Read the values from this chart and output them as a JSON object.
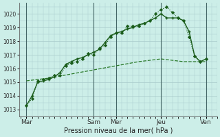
{
  "background_color": "#cceee8",
  "grid_color": "#aacccc",
  "line_color_1": "#1a5c1a",
  "line_color_2": "#1a5c1a",
  "line_color_3": "#2a7a2a",
  "title": "Pression niveau de la mer( hPa )",
  "ylabel_ticks": [
    1013,
    1014,
    1015,
    1016,
    1017,
    1018,
    1019,
    1020
  ],
  "ylim": [
    1012.5,
    1020.8
  ],
  "x_day_labels": [
    "Mar",
    "Sam",
    "Mer",
    "Jeu",
    "Ven"
  ],
  "x_day_positions": [
    0,
    9,
    12,
    18,
    24
  ],
  "xlim": [
    -1,
    25.5
  ],
  "series1_x": [
    0,
    0.75,
    1.5,
    2.25,
    3,
    3.75,
    4.5,
    5.25,
    6,
    6.75,
    7.5,
    8.25,
    9,
    9.75,
    10.5,
    11.25,
    12,
    12.75,
    13.5,
    14.25,
    15,
    15.75,
    16.5,
    17.25,
    18,
    18.75,
    19.5,
    20.25,
    21,
    21.75,
    22.5,
    23.25,
    24
  ],
  "series1_y": [
    1013.3,
    1013.8,
    1015.1,
    1015.2,
    1015.3,
    1015.5,
    1015.5,
    1016.2,
    1016.4,
    1016.5,
    1016.7,
    1017.1,
    1017.0,
    1017.5,
    1017.7,
    1018.3,
    1018.6,
    1018.6,
    1019.1,
    1019.1,
    1019.1,
    1019.3,
    1019.5,
    1020.0,
    1020.3,
    1020.5,
    1020.1,
    1019.7,
    1019.5,
    1018.3,
    1016.9,
    1016.5,
    1016.7
  ],
  "series2_x": [
    0,
    0.75,
    1.5,
    2.25,
    3,
    3.75,
    4.5,
    5.25,
    6,
    6.75,
    7.5,
    8.25,
    9,
    9.75,
    10.5,
    11.25,
    12,
    12.75,
    13.5,
    14.25,
    15,
    15.75,
    16.5,
    17.25,
    18,
    18.75,
    19.5,
    20.25,
    21,
    21.75,
    22.5,
    23.25,
    24
  ],
  "series2_y": [
    1013.3,
    1014.0,
    1015.0,
    1015.1,
    1015.2,
    1015.4,
    1015.7,
    1016.3,
    1016.5,
    1016.7,
    1016.8,
    1017.0,
    1017.2,
    1017.4,
    1017.9,
    1018.4,
    1018.6,
    1018.7,
    1018.9,
    1019.0,
    1019.2,
    1019.3,
    1019.5,
    1019.7,
    1020.0,
    1019.7,
    1019.7,
    1019.7,
    1019.5,
    1018.7,
    1016.9,
    1016.5,
    1016.7
  ],
  "series3_x": [
    0,
    3,
    6,
    9,
    12,
    15,
    18,
    21,
    24
  ],
  "series3_y": [
    1015.1,
    1015.3,
    1015.6,
    1015.9,
    1016.2,
    1016.5,
    1016.7,
    1016.5,
    1016.5
  ]
}
